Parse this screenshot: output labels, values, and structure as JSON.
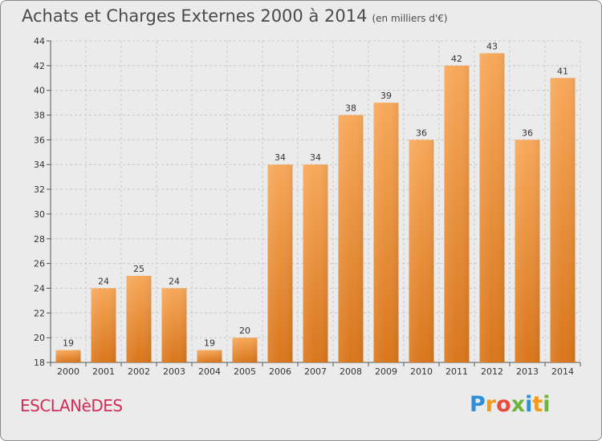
{
  "title": "Achats et Charges Externes 2000 à 2014",
  "subtitle": "(en milliers d'€)",
  "commune": "ESCLANèDES",
  "logo": {
    "text": "Proxiti",
    "letter_colors": [
      "#2f8fd6",
      "#f39a1c",
      "#e64c3c",
      "#6cb33f",
      "#2f8fd6",
      "#f39a1c",
      "#6cb33f"
    ]
  },
  "colors": {
    "bar_top": "#f7a85a",
    "bar_bottom": "#d9761c",
    "commune": "#d42a5a",
    "background": "#ebebeb"
  },
  "chart_data": {
    "type": "bar",
    "categories": [
      "2000",
      "2001",
      "2002",
      "2003",
      "2004",
      "2005",
      "2006",
      "2007",
      "2008",
      "2009",
      "2010",
      "2011",
      "2012",
      "2013",
      "2014"
    ],
    "values": [
      19,
      24,
      25,
      24,
      19,
      20,
      34,
      34,
      38,
      39,
      36,
      42,
      43,
      36,
      41
    ],
    "ylim": [
      18,
      44
    ],
    "yticks": [
      18,
      20,
      22,
      24,
      26,
      28,
      30,
      32,
      34,
      36,
      38,
      40,
      42,
      44
    ],
    "grid": true,
    "xlabel": "",
    "ylabel": ""
  }
}
